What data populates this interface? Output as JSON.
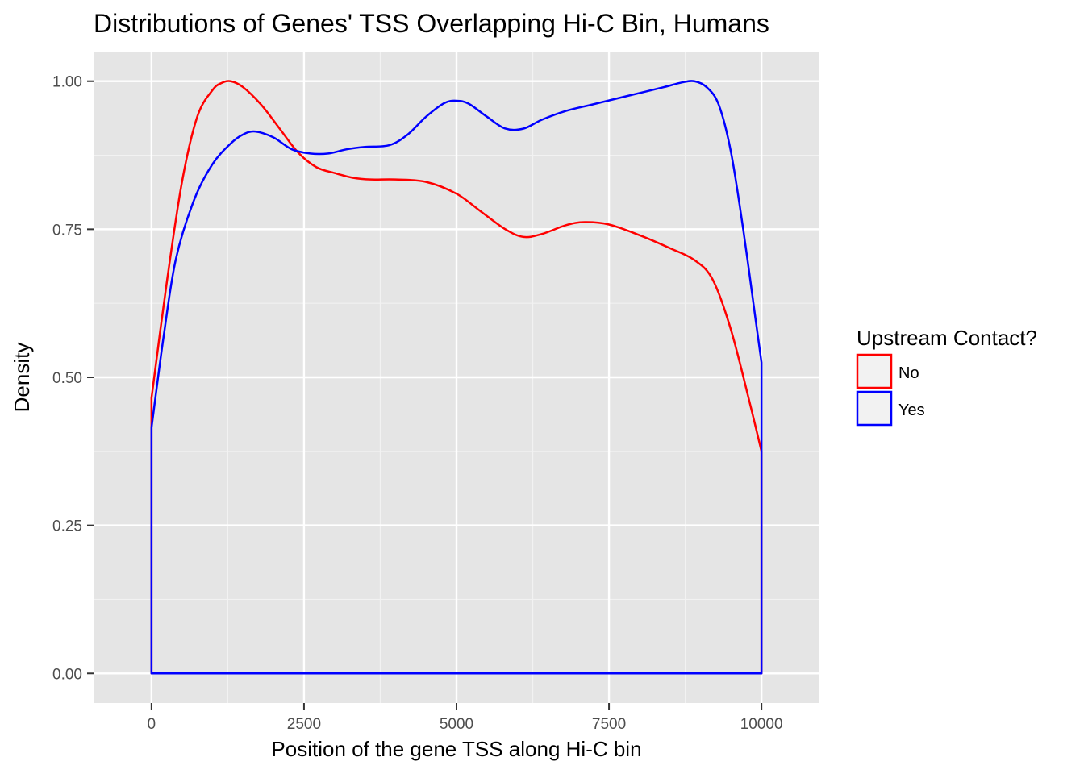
{
  "chart_data": {
    "type": "line",
    "title": "Distributions of Genes' TSS Overlapping Hi-C Bin, Humans",
    "xlabel": "Position of the gene TSS along Hi-C bin",
    "ylabel": "Density",
    "xlim": [
      -950,
      10950
    ],
    "ylim": [
      -0.05,
      1.05
    ],
    "xticks": [
      0,
      2500,
      5000,
      7500,
      10000
    ],
    "xtick_labels": [
      "0",
      "2500",
      "5000",
      "7500",
      "10000"
    ],
    "yticks": [
      0,
      0.25,
      0.5,
      0.75,
      1.0
    ],
    "ytick_labels": [
      "0.00",
      "0.25",
      "0.50",
      "0.75",
      "1.00"
    ],
    "grid": true,
    "background": "#e5e5e5",
    "legend": {
      "title": "Upstream Contact?",
      "position": "right"
    },
    "series": [
      {
        "name": "No",
        "color": "#ff0000",
        "x": [
          0,
          250,
          500,
          750,
          1000,
          1150,
          1300,
          1500,
          1800,
          2100,
          2400,
          2700,
          3000,
          3300,
          3600,
          4000,
          4500,
          5000,
          5400,
          5800,
          6100,
          6400,
          6800,
          7100,
          7500,
          8000,
          8500,
          8900,
          9200,
          9500,
          9800,
          10000
        ],
        "y": [
          0.465,
          0.66,
          0.83,
          0.94,
          0.985,
          0.997,
          1.0,
          0.99,
          0.96,
          0.92,
          0.88,
          0.855,
          0.845,
          0.837,
          0.834,
          0.834,
          0.83,
          0.81,
          0.78,
          0.75,
          0.737,
          0.742,
          0.757,
          0.762,
          0.758,
          0.74,
          0.718,
          0.698,
          0.665,
          0.58,
          0.46,
          0.375
        ]
      },
      {
        "name": "Yes",
        "color": "#0000ff",
        "x": [
          0,
          200,
          400,
          700,
          1000,
          1300,
          1500,
          1700,
          2000,
          2300,
          2600,
          2900,
          3200,
          3500,
          3900,
          4200,
          4500,
          4800,
          5000,
          5200,
          5500,
          5800,
          6100,
          6400,
          6800,
          7200,
          7600,
          8000,
          8400,
          8700,
          8900,
          9100,
          9300,
          9500,
          9700,
          9900,
          10000
        ],
        "y": [
          0.415,
          0.57,
          0.7,
          0.8,
          0.86,
          0.895,
          0.91,
          0.915,
          0.905,
          0.885,
          0.878,
          0.878,
          0.885,
          0.889,
          0.892,
          0.91,
          0.94,
          0.963,
          0.967,
          0.962,
          0.94,
          0.92,
          0.92,
          0.935,
          0.95,
          0.96,
          0.97,
          0.98,
          0.99,
          0.998,
          1.0,
          0.99,
          0.96,
          0.88,
          0.75,
          0.6,
          0.525
        ]
      }
    ]
  }
}
